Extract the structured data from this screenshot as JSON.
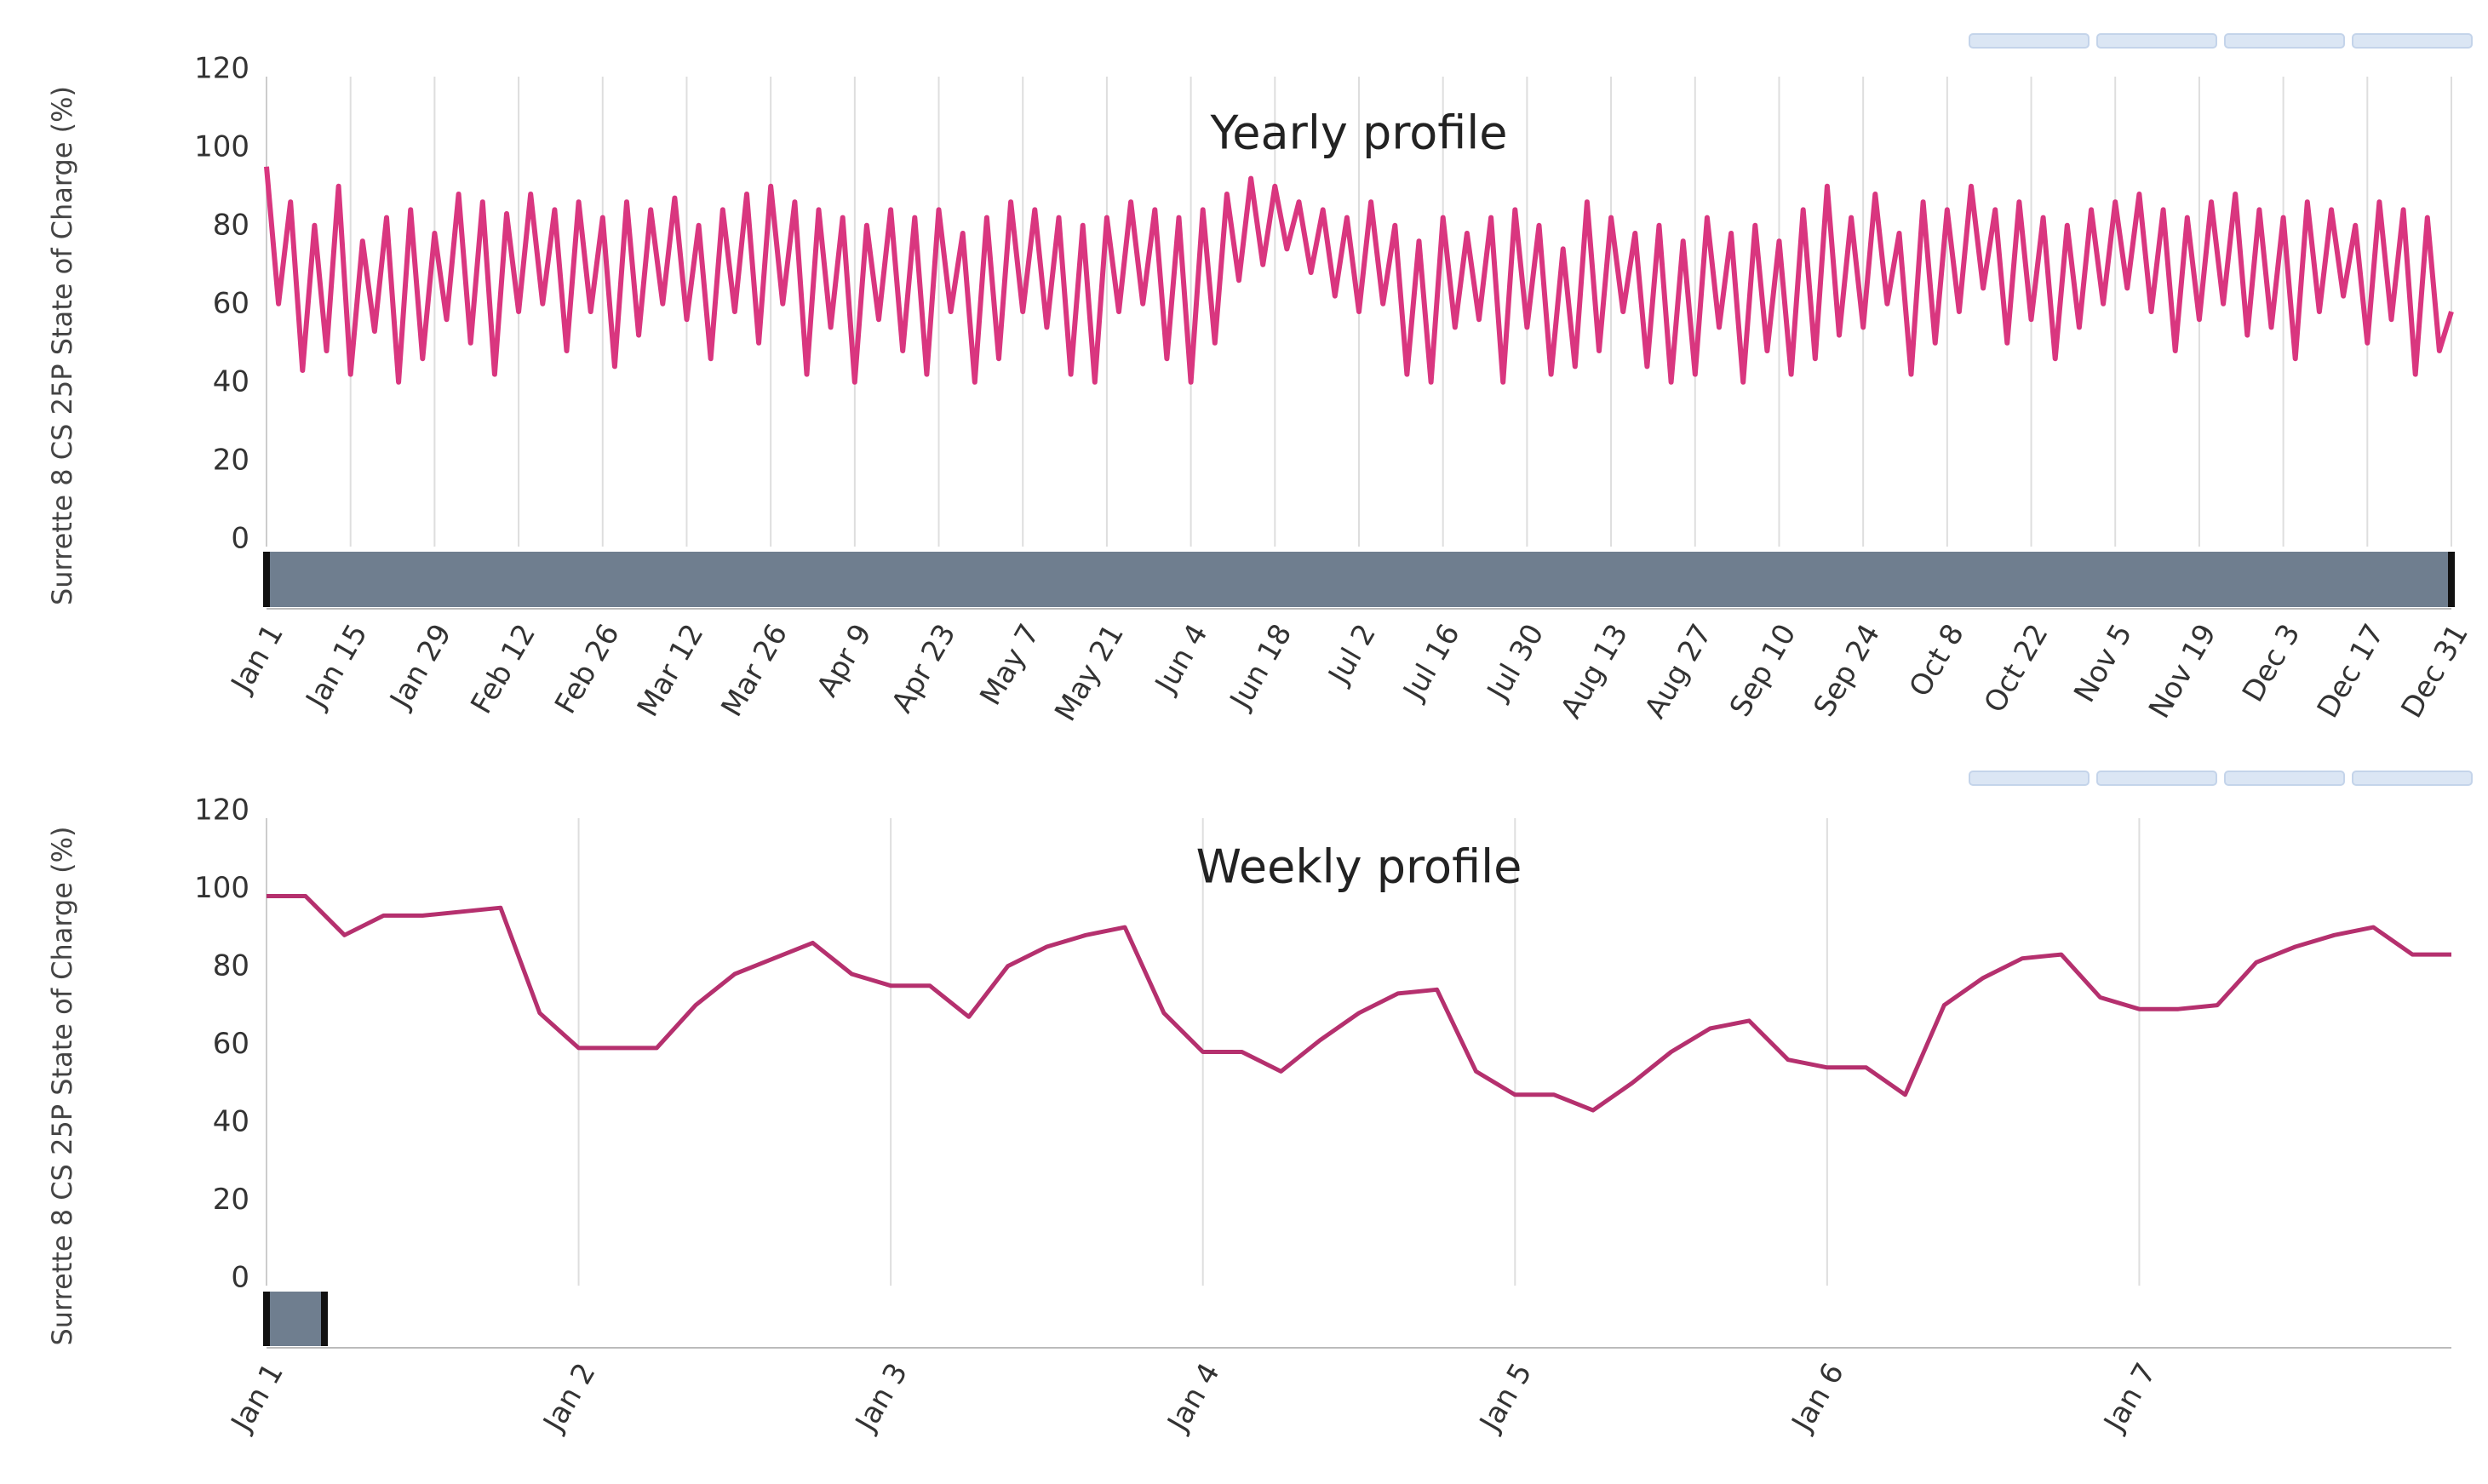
{
  "chart_data": [
    {
      "type": "line",
      "title": "Yearly profile",
      "y_label": "Surrette 8 CS 25P State of Charge (%)",
      "color": "#d9367f",
      "xlim": [
        0,
        364
      ],
      "ylim": [
        0,
        120
      ],
      "yticks": [
        0,
        20,
        40,
        60,
        80,
        100,
        120
      ],
      "grid": true,
      "xticks": [
        {
          "value": 0,
          "label": "Jan 1"
        },
        {
          "value": 14,
          "label": "Jan 15"
        },
        {
          "value": 28,
          "label": "Jan 29"
        },
        {
          "value": 42,
          "label": "Feb 12"
        },
        {
          "value": 56,
          "label": "Feb 26"
        },
        {
          "value": 70,
          "label": "Mar 12"
        },
        {
          "value": 84,
          "label": "Mar 26"
        },
        {
          "value": 98,
          "label": "Apr 9"
        },
        {
          "value": 112,
          "label": "Apr 23"
        },
        {
          "value": 126,
          "label": "May 7"
        },
        {
          "value": 140,
          "label": "May 21"
        },
        {
          "value": 154,
          "label": "Jun 4"
        },
        {
          "value": 168,
          "label": "Jun 18"
        },
        {
          "value": 182,
          "label": "Jul 2"
        },
        {
          "value": 196,
          "label": "Jul 16"
        },
        {
          "value": 210,
          "label": "Jul 30"
        },
        {
          "value": 224,
          "label": "Aug 13"
        },
        {
          "value": 238,
          "label": "Aug 27"
        },
        {
          "value": 252,
          "label": "Sep 10"
        },
        {
          "value": 266,
          "label": "Sep 24"
        },
        {
          "value": 280,
          "label": "Oct 8"
        },
        {
          "value": 294,
          "label": "Oct 22"
        },
        {
          "value": 308,
          "label": "Nov 5"
        },
        {
          "value": 322,
          "label": "Nov 19"
        },
        {
          "value": 336,
          "label": "Dec 3"
        },
        {
          "value": 350,
          "label": "Dec 17"
        },
        {
          "value": 364,
          "label": "Dec 31"
        }
      ],
      "x": [
        0,
        2,
        4,
        6,
        8,
        10,
        12,
        14,
        16,
        18,
        20,
        22,
        24,
        26,
        28,
        30,
        32,
        34,
        36,
        38,
        40,
        42,
        44,
        46,
        48,
        50,
        52,
        54,
        56,
        58,
        60,
        62,
        64,
        66,
        68,
        70,
        72,
        74,
        76,
        78,
        80,
        82,
        84,
        86,
        88,
        90,
        92,
        94,
        96,
        98,
        100,
        102,
        104,
        106,
        108,
        110,
        112,
        114,
        116,
        118,
        120,
        122,
        124,
        126,
        128,
        130,
        132,
        134,
        136,
        138,
        140,
        142,
        144,
        146,
        148,
        150,
        152,
        154,
        156,
        158,
        160,
        162,
        164,
        166,
        168,
        170,
        172,
        174,
        176,
        178,
        180,
        182,
        184,
        186,
        188,
        190,
        192,
        194,
        196,
        198,
        200,
        202,
        204,
        206,
        208,
        210,
        212,
        214,
        216,
        218,
        220,
        222,
        224,
        226,
        228,
        230,
        232,
        234,
        236,
        238,
        240,
        242,
        244,
        246,
        248,
        250,
        252,
        254,
        256,
        258,
        260,
        262,
        264,
        266,
        268,
        270,
        272,
        274,
        276,
        278,
        280,
        282,
        284,
        286,
        288,
        290,
        292,
        294,
        296,
        298,
        300,
        302,
        304,
        306,
        308,
        310,
        312,
        314,
        316,
        318,
        320,
        322,
        324,
        326,
        328,
        330,
        332,
        334,
        336,
        338,
        340,
        342,
        344,
        346,
        348,
        350,
        352,
        354,
        356,
        358,
        360,
        362,
        364
      ],
      "values": [
        97,
        62,
        88,
        45,
        82,
        50,
        92,
        44,
        78,
        55,
        84,
        42,
        86,
        48,
        80,
        58,
        90,
        52,
        88,
        44,
        85,
        60,
        90,
        62,
        86,
        50,
        88,
        60,
        84,
        46,
        88,
        54,
        86,
        62,
        89,
        58,
        82,
        48,
        86,
        60,
        90,
        52,
        92,
        62,
        88,
        44,
        86,
        56,
        84,
        42,
        82,
        58,
        86,
        50,
        84,
        44,
        86,
        60,
        80,
        42,
        84,
        48,
        88,
        60,
        86,
        56,
        84,
        44,
        82,
        42,
        84,
        60,
        88,
        62,
        86,
        48,
        84,
        42,
        86,
        52,
        90,
        68,
        94,
        72,
        92,
        76,
        88,
        70,
        86,
        64,
        84,
        60,
        88,
        62,
        82,
        44,
        78,
        42,
        84,
        56,
        80,
        58,
        84,
        42,
        86,
        56,
        82,
        44,
        76,
        46,
        88,
        50,
        84,
        60,
        80,
        46,
        82,
        42,
        78,
        44,
        84,
        56,
        80,
        42,
        82,
        50,
        78,
        44,
        86,
        48,
        92,
        54,
        84,
        56,
        90,
        62,
        80,
        44,
        88,
        52,
        86,
        60,
        92,
        66,
        86,
        52,
        88,
        58,
        84,
        48,
        82,
        56,
        86,
        62,
        88,
        66,
        90,
        60,
        86,
        50,
        84,
        58,
        88,
        62,
        90,
        54,
        86,
        56,
        84,
        48,
        88,
        60,
        86,
        64,
        82,
        52,
        88,
        58,
        86,
        44,
        84,
        50,
        60
      ]
    },
    {
      "type": "line",
      "title": "Weekly profile",
      "y_label": "Surrette 8 CS 25P State of Charge (%)",
      "color": "#b5306e",
      "xlim": [
        0,
        7
      ],
      "ylim": [
        0,
        120
      ],
      "yticks": [
        0,
        20,
        40,
        60,
        80,
        100,
        120
      ],
      "grid": true,
      "xticks": [
        {
          "value": 0,
          "label": "Jan 1"
        },
        {
          "value": 1,
          "label": "Jan 2"
        },
        {
          "value": 2,
          "label": "Jan 3"
        },
        {
          "value": 3,
          "label": "Jan 4"
        },
        {
          "value": 4,
          "label": "Jan 5"
        },
        {
          "value": 5,
          "label": "Jan 6"
        },
        {
          "value": 6,
          "label": "Jan 7"
        }
      ],
      "x": [
        0,
        0.125,
        0.25,
        0.375,
        0.5,
        0.625,
        0.75,
        0.875,
        1,
        1.125,
        1.25,
        1.375,
        1.5,
        1.625,
        1.75,
        1.875,
        2,
        2.125,
        2.25,
        2.375,
        2.5,
        2.625,
        2.75,
        2.875,
        3,
        3.125,
        3.25,
        3.375,
        3.5,
        3.625,
        3.75,
        3.875,
        4,
        4.125,
        4.25,
        4.375,
        4.5,
        4.625,
        4.75,
        4.875,
        5,
        5.125,
        5.25,
        5.375,
        5.5,
        5.625,
        5.75,
        5.875,
        6,
        6.125,
        6.25,
        6.375,
        6.5,
        6.625,
        6.75,
        6.875,
        7
      ],
      "values": [
        100,
        100,
        90,
        95,
        95,
        96,
        97,
        70,
        61,
        61,
        61,
        72,
        80,
        84,
        88,
        80,
        77,
        77,
        69,
        82,
        87,
        90,
        92,
        70,
        60,
        60,
        55,
        63,
        70,
        75,
        76,
        55,
        49,
        49,
        45,
        52,
        60,
        66,
        68,
        58,
        56,
        56,
        49,
        72,
        79,
        84,
        85,
        74,
        71,
        71,
        72,
        83,
        87,
        90,
        92,
        85,
        85
      ]
    }
  ]
}
